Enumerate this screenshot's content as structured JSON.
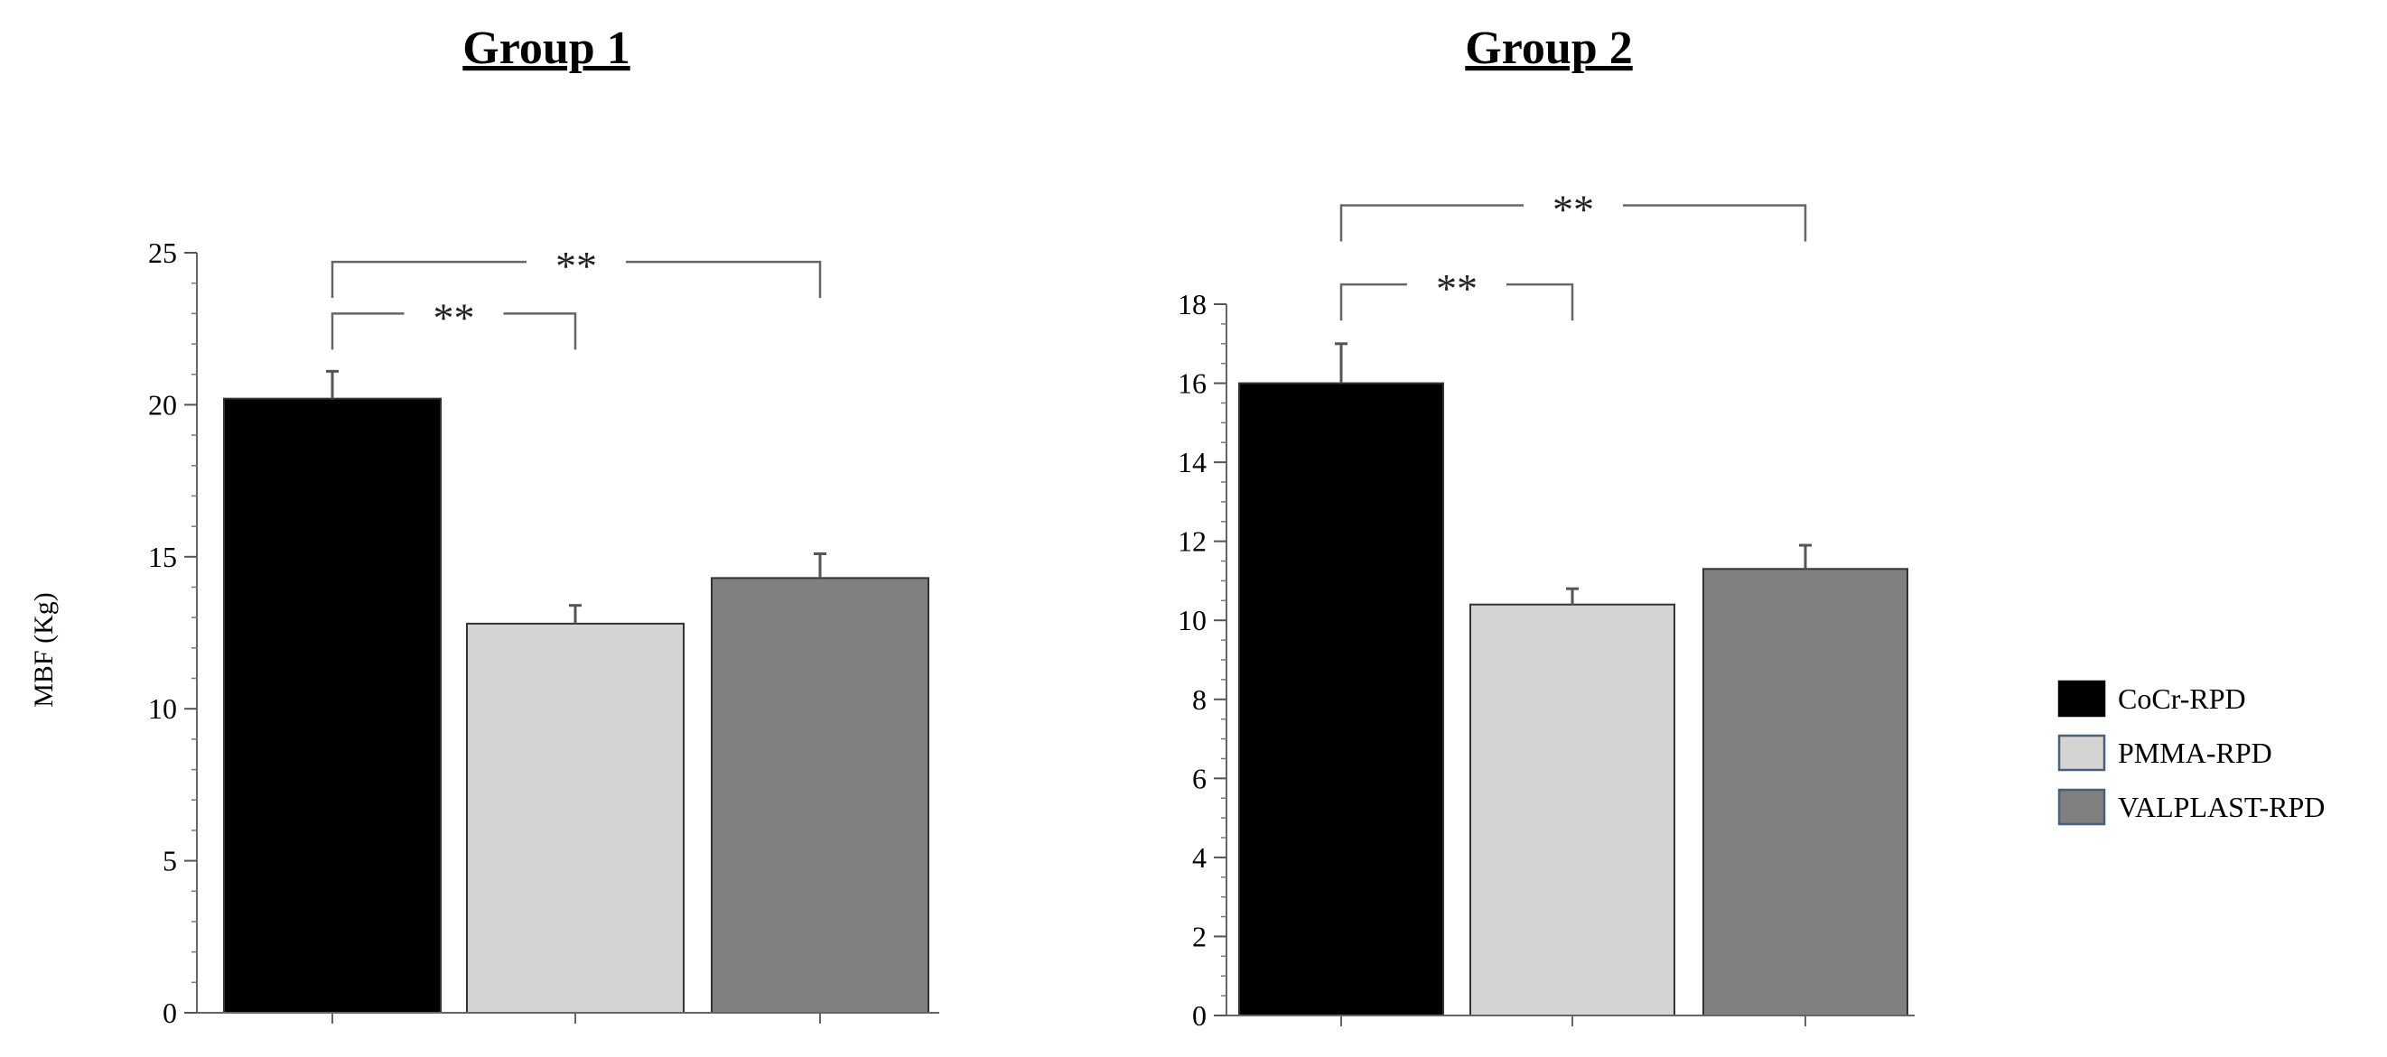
{
  "charts": [
    {
      "type": "bar",
      "title": "Group 1",
      "ylabel": "MBF (Kg)",
      "xlabel": "",
      "ylim": [
        0,
        25
      ],
      "yticks": [
        0,
        5,
        10,
        15,
        20,
        25
      ],
      "categories": [
        "CoCr-RPD",
        "PMMA-RPD",
        "VALPLAST-RPD"
      ],
      "values": [
        20.2,
        12.8,
        14.3
      ],
      "errors": [
        0.9,
        0.6,
        0.8
      ],
      "significance": [
        {
          "from": 0,
          "to": 1,
          "label": "**",
          "y": 23.0
        },
        {
          "from": 0,
          "to": 2,
          "label": "**",
          "y": 24.7
        }
      ]
    },
    {
      "type": "bar",
      "title": "Group 2",
      "ylabel": "",
      "xlabel": "",
      "ylim": [
        0,
        18
      ],
      "yticks": [
        0,
        2,
        4,
        6,
        8,
        10,
        12,
        14,
        16,
        18
      ],
      "categories": [
        "CoCr-RPD",
        "PMMA-RPD",
        "VALPLAST-RPD"
      ],
      "values": [
        16.0,
        10.4,
        11.3
      ],
      "errors": [
        1.0,
        0.4,
        0.6
      ],
      "significance": [
        {
          "from": 0,
          "to": 1,
          "label": "**",
          "y": 18.5
        },
        {
          "from": 0,
          "to": 2,
          "label": "**",
          "y": 20.5
        }
      ]
    }
  ],
  "legend": {
    "placement": "right",
    "items": [
      {
        "label": "CoCr-RPD",
        "color": "#000000"
      },
      {
        "label": "PMMA-RPD",
        "color": "#d6d3d3"
      },
      {
        "label": "VALPLAST-RPD",
        "color": "#808080"
      }
    ]
  },
  "colors": [
    "#000000",
    "#d6d3d3",
    "#808080"
  ]
}
